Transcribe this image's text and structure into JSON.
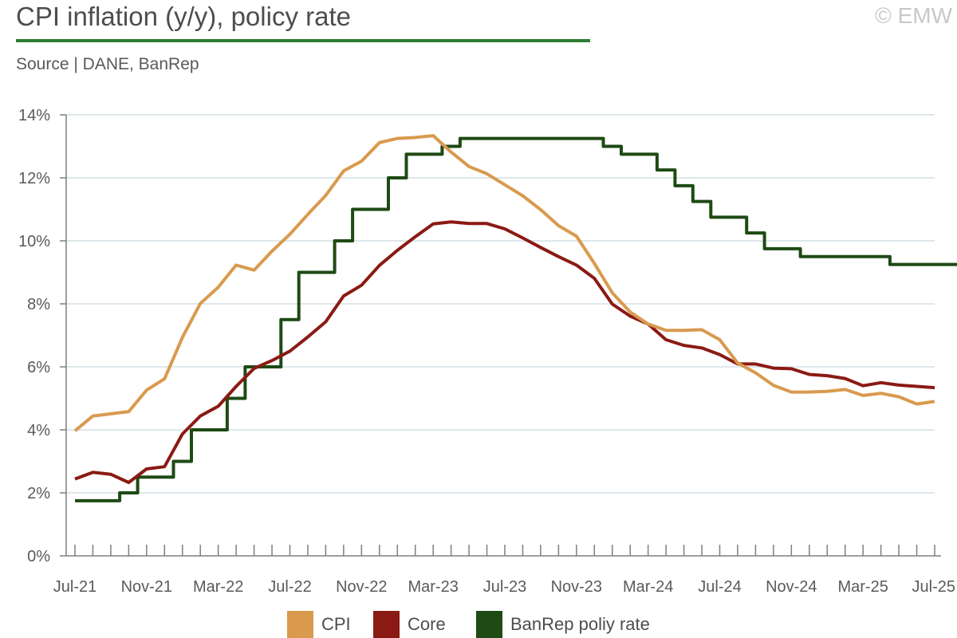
{
  "header": {
    "title": "CPI inflation (y/y), policy rate",
    "source": "Source | DANE, BanRep",
    "copyright": "© EMW"
  },
  "colors": {
    "cpi": "#d99a4e",
    "core": "#8b1a14",
    "policy": "#1e4a14",
    "grid": "#c9d9e0",
    "axis": "#7f7f7f"
  },
  "chart_data": {
    "type": "line",
    "title": "CPI inflation (y/y), policy rate",
    "ylim": [
      0,
      14
    ],
    "yticks": [
      0,
      2,
      4,
      6,
      8,
      10,
      12,
      14
    ],
    "ytick_labels": [
      "0%",
      "2%",
      "4%",
      "6%",
      "8%",
      "10%",
      "12%",
      "14%"
    ],
    "x": [
      "Jul-21",
      "Aug-21",
      "Sep-21",
      "Oct-21",
      "Nov-21",
      "Dec-21",
      "Jan-22",
      "Feb-22",
      "Mar-22",
      "Apr-22",
      "May-22",
      "Jun-22",
      "Jul-22",
      "Aug-22",
      "Sep-22",
      "Oct-22",
      "Nov-22",
      "Dec-22",
      "Jan-23",
      "Feb-23",
      "Mar-23",
      "Apr-23",
      "May-23",
      "Jun-23",
      "Jul-23",
      "Aug-23",
      "Sep-23",
      "Oct-23",
      "Nov-23",
      "Dec-23",
      "Jan-24",
      "Feb-24",
      "Mar-24",
      "Apr-24",
      "May-24",
      "Jun-24",
      "Jul-24",
      "Aug-24",
      "Sep-24",
      "Oct-24",
      "Nov-24",
      "Dec-24",
      "Jan-25",
      "Feb-25",
      "Mar-25",
      "Apr-25",
      "May-25",
      "Jun-25",
      "Jul-25"
    ],
    "x_tick_labels": [
      {
        "index": 0,
        "label": "Jul-21"
      },
      {
        "index": 4,
        "label": "Nov-21"
      },
      {
        "index": 8,
        "label": "Mar-22"
      },
      {
        "index": 12,
        "label": "Jul-22"
      },
      {
        "index": 16,
        "label": "Nov-22"
      },
      {
        "index": 20,
        "label": "Mar-23"
      },
      {
        "index": 24,
        "label": "Jul-23"
      },
      {
        "index": 28,
        "label": "Nov-23"
      },
      {
        "index": 32,
        "label": "Mar-24"
      },
      {
        "index": 36,
        "label": "Jul-24"
      },
      {
        "index": 40,
        "label": "Nov-24"
      },
      {
        "index": 44,
        "label": "Mar-25"
      },
      {
        "index": 48,
        "label": "Jul-25"
      }
    ],
    "series": [
      {
        "name": "CPI",
        "style": "line",
        "values": [
          3.97,
          4.44,
          4.51,
          4.58,
          5.26,
          5.62,
          6.94,
          8.01,
          8.53,
          9.23,
          9.07,
          9.67,
          10.21,
          10.84,
          11.44,
          12.22,
          12.53,
          13.12,
          13.25,
          13.28,
          13.34,
          12.82,
          12.36,
          12.13,
          11.78,
          11.43,
          10.99,
          10.48,
          10.15,
          9.28,
          8.35,
          7.74,
          7.36,
          7.16,
          7.16,
          7.18,
          6.86,
          6.12,
          5.81,
          5.41,
          5.2,
          5.2,
          5.22,
          5.28,
          5.09,
          5.16,
          5.05,
          4.82,
          4.9
        ]
      },
      {
        "name": "Core",
        "style": "line",
        "values": [
          2.44,
          2.65,
          2.59,
          2.33,
          2.76,
          2.83,
          3.87,
          4.44,
          4.75,
          5.38,
          5.95,
          6.2,
          6.5,
          6.95,
          7.43,
          8.25,
          8.59,
          9.22,
          9.7,
          10.13,
          10.54,
          10.6,
          10.55,
          10.55,
          10.38,
          10.09,
          9.79,
          9.5,
          9.23,
          8.81,
          7.99,
          7.61,
          7.36,
          6.86,
          6.68,
          6.6,
          6.39,
          6.09,
          6.09,
          5.96,
          5.94,
          5.76,
          5.72,
          5.63,
          5.4,
          5.5,
          5.42,
          5.38,
          5.34
        ]
      },
      {
        "name": "BanRep poliy rate",
        "style": "step",
        "values": [
          1.75,
          1.75,
          1.75,
          2.0,
          2.5,
          2.5,
          3.0,
          4.0,
          4.0,
          5.0,
          6.0,
          6.0,
          7.5,
          9.0,
          9.0,
          10.0,
          11.0,
          11.0,
          12.0,
          12.75,
          12.75,
          13.0,
          13.25,
          13.25,
          13.25,
          13.25,
          13.25,
          13.25,
          13.25,
          13.25,
          13.0,
          12.75,
          12.75,
          12.25,
          11.75,
          11.25,
          10.75,
          10.75,
          10.25,
          9.75,
          9.75,
          9.5,
          9.5,
          9.5,
          9.5,
          9.5,
          9.25,
          9.25,
          9.25
        ]
      }
    ],
    "legend": {
      "position": "bottom-center",
      "entries": [
        "CPI",
        "Core",
        "BanRep poliy rate"
      ]
    },
    "grid": true
  }
}
